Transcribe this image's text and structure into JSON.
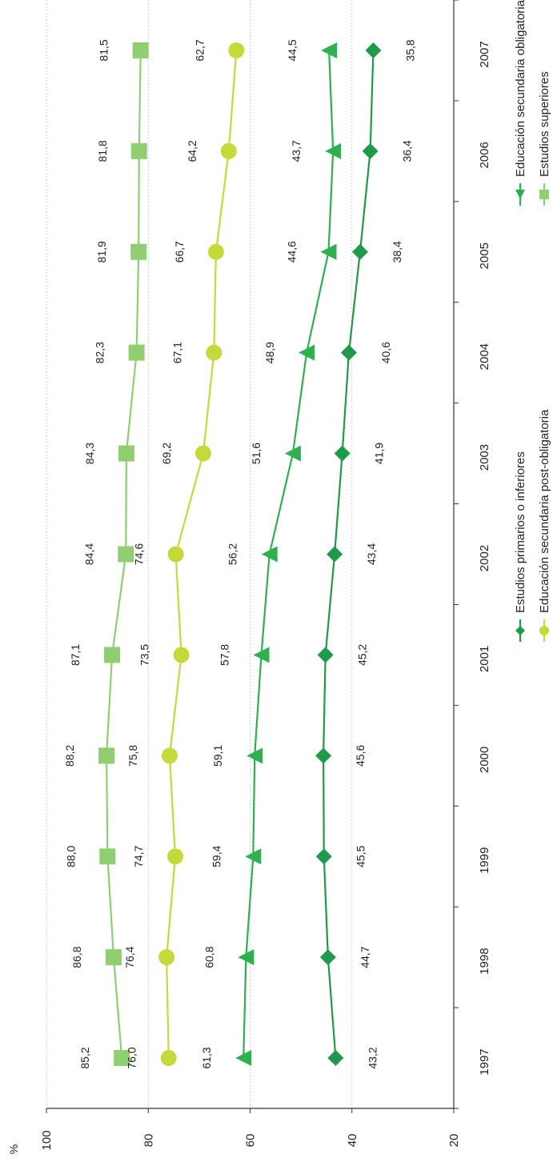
{
  "chart_data": {
    "type": "line",
    "orientation": "rotated-90-clockwise",
    "unit_label": "%",
    "categories": [
      "1997",
      "1998",
      "1999",
      "2000",
      "2001",
      "2002",
      "2003",
      "2004",
      "2005",
      "2006",
      "2007"
    ],
    "ylim": [
      20,
      100
    ],
    "yticks": [
      "20",
      "40",
      "60",
      "80",
      "100"
    ],
    "grid": true,
    "legend_position": "bottom",
    "series": [
      {
        "name": "Estudios primarios o inferiores",
        "marker": "diamond",
        "color": "#1f9a4a",
        "values": [
          43.2,
          44.7,
          45.5,
          45.6,
          45.2,
          43.4,
          41.9,
          40.6,
          38.4,
          36.4,
          35.8
        ],
        "labels": [
          "43,2",
          "44,7",
          "45,5",
          "45,6",
          "45,2",
          "43,4",
          "41,9",
          "40,6",
          "38,4",
          "36,4",
          "35,8"
        ]
      },
      {
        "name": "Educación secundaria obligatoria",
        "marker": "triangle",
        "color": "#2eb04f",
        "values": [
          61.3,
          60.8,
          59.4,
          59.1,
          57.8,
          56.2,
          51.6,
          48.9,
          44.6,
          43.7,
          44.5
        ],
        "labels": [
          "61,3",
          "60,8",
          "59,4",
          "59,1",
          "57,8",
          "56,2",
          "51,6",
          "48,9",
          "44,6",
          "43,7",
          "44,5"
        ]
      },
      {
        "name": "Educación secundaria post-obligatoria",
        "marker": "circle",
        "color": "#c5d93b",
        "values": [
          76.0,
          76.4,
          74.7,
          75.8,
          73.5,
          74.6,
          69.2,
          67.1,
          66.7,
          64.2,
          62.7
        ],
        "labels": [
          "76,0",
          "76,4",
          "74,7",
          "75,8",
          "73,5",
          "74,6",
          "69,2",
          "67,1",
          "66,7",
          "64,2",
          "62,7"
        ]
      },
      {
        "name": "Estudios superiores",
        "marker": "square",
        "color": "#8fcf72",
        "values": [
          85.2,
          86.8,
          88.0,
          88.2,
          87.1,
          84.4,
          84.3,
          82.3,
          81.9,
          81.8,
          81.5
        ],
        "labels": [
          "85,2",
          "86,8",
          "88,0",
          "88,2",
          "87,1",
          "84,4",
          "84,3",
          "82,3",
          "81,9",
          "81,8",
          "81,5"
        ]
      }
    ]
  }
}
